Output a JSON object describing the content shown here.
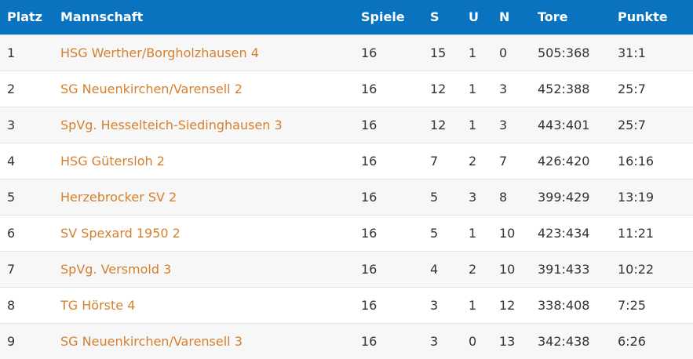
{
  "colors": {
    "header_bg": "#0a73c0",
    "header_text": "#ffffff",
    "team_link": "#d5802e",
    "row_odd": "#f7f7f7",
    "row_even": "#ffffff"
  },
  "table": {
    "headers": {
      "platz": "Platz",
      "mannschaft": "Mannschaft",
      "spiele": "Spiele",
      "s": "S",
      "u": "U",
      "n": "N",
      "tore": "Tore",
      "punkte": "Punkte"
    },
    "rows": [
      {
        "platz": "1",
        "mannschaft": "HSG Werther/Borgholzhausen 4",
        "spiele": "16",
        "s": "15",
        "u": "1",
        "n": "0",
        "tore": "505:368",
        "punkte": "31:1"
      },
      {
        "platz": "2",
        "mannschaft": "SG Neuenkirchen/Varensell 2",
        "spiele": "16",
        "s": "12",
        "u": "1",
        "n": "3",
        "tore": "452:388",
        "punkte": "25:7"
      },
      {
        "platz": "3",
        "mannschaft": "SpVg. Hesselteich-Siedinghausen 3",
        "spiele": "16",
        "s": "12",
        "u": "1",
        "n": "3",
        "tore": "443:401",
        "punkte": "25:7"
      },
      {
        "platz": "4",
        "mannschaft": "HSG Gütersloh 2",
        "spiele": "16",
        "s": "7",
        "u": "2",
        "n": "7",
        "tore": "426:420",
        "punkte": "16:16"
      },
      {
        "platz": "5",
        "mannschaft": "Herzebrocker SV 2",
        "spiele": "16",
        "s": "5",
        "u": "3",
        "n": "8",
        "tore": "399:429",
        "punkte": "13:19"
      },
      {
        "platz": "6",
        "mannschaft": "SV Spexard 1950 2",
        "spiele": "16",
        "s": "5",
        "u": "1",
        "n": "10",
        "tore": "423:434",
        "punkte": "11:21"
      },
      {
        "platz": "7",
        "mannschaft": "SpVg. Versmold 3",
        "spiele": "16",
        "s": "4",
        "u": "2",
        "n": "10",
        "tore": "391:433",
        "punkte": "10:22"
      },
      {
        "platz": "8",
        "mannschaft": "TG Hörste 4",
        "spiele": "16",
        "s": "3",
        "u": "1",
        "n": "12",
        "tore": "338:408",
        "punkte": "7:25"
      },
      {
        "platz": "9",
        "mannschaft": "SG Neuenkirchen/Varensell 3",
        "spiele": "16",
        "s": "3",
        "u": "0",
        "n": "13",
        "tore": "342:438",
        "punkte": "6:26"
      }
    ]
  }
}
